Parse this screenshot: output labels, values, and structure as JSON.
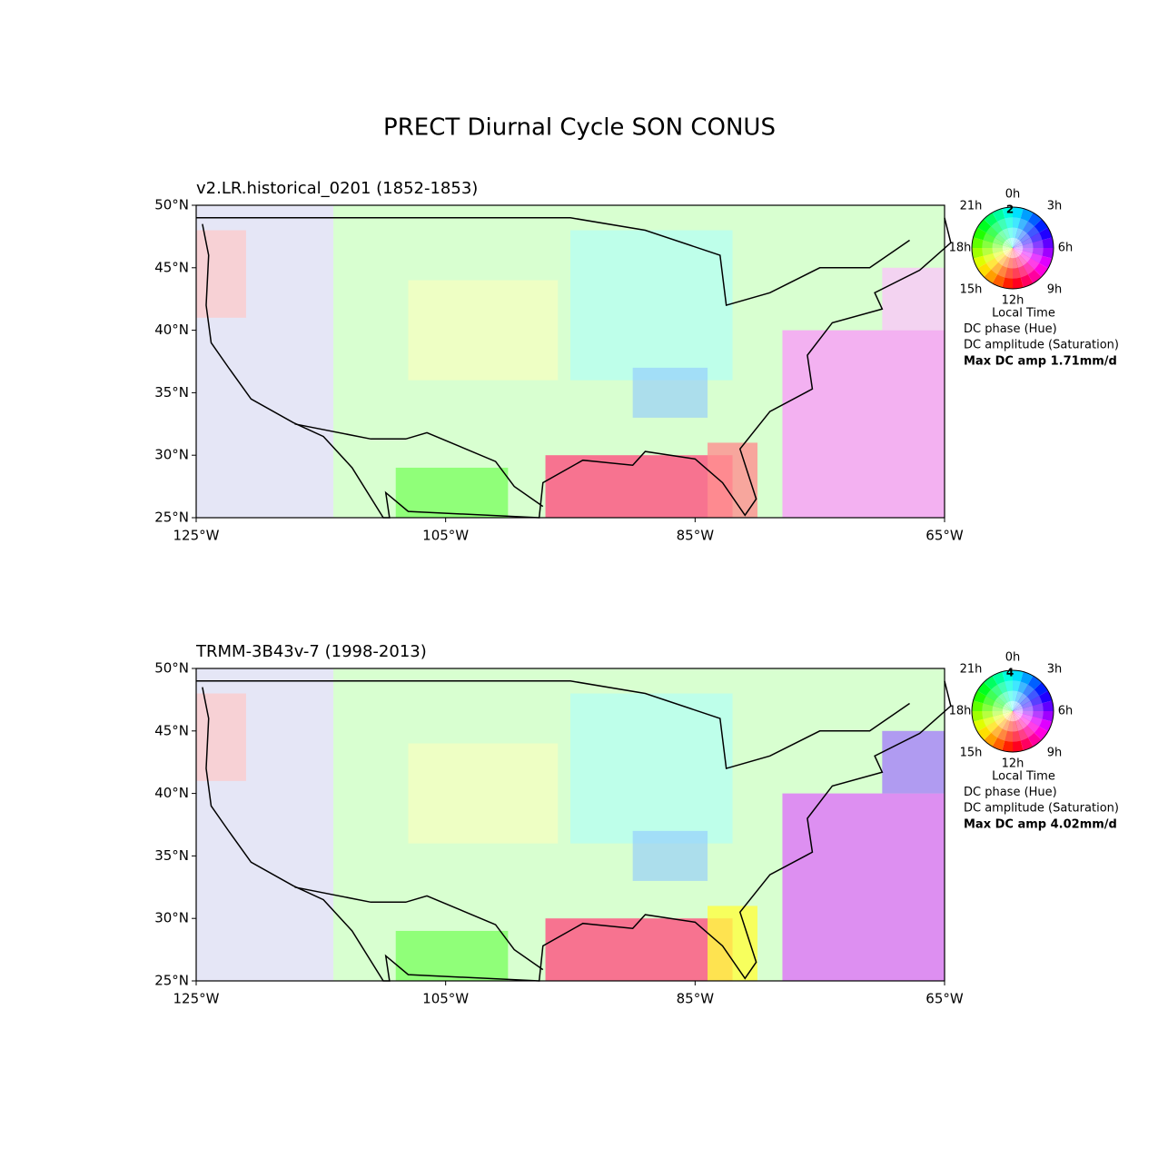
{
  "title": "PRECT Diurnal Cycle  SON CONUS",
  "panels": [
    {
      "subtitle": "v2.LR.historical_0201 (1852-1853)",
      "xlim": [
        -125,
        -65
      ],
      "ylim": [
        25,
        50
      ],
      "xticks": [
        {
          "value": -125,
          "label": "125°W"
        },
        {
          "value": -105,
          "label": "105°W"
        },
        {
          "value": -85,
          "label": "85°W"
        },
        {
          "value": -65,
          "label": "65°W"
        }
      ],
      "yticks": [
        {
          "value": 25,
          "label": "25°N"
        },
        {
          "value": 30,
          "label": "30°N"
        },
        {
          "value": 35,
          "label": "35°N"
        },
        {
          "value": 40,
          "label": "40°N"
        },
        {
          "value": 45,
          "label": "45°N"
        },
        {
          "value": 50,
          "label": "50°N"
        }
      ],
      "legend": {
        "max_label": "2",
        "hours": [
          "0h",
          "3h",
          "6h",
          "9h",
          "12h",
          "15h",
          "18h",
          "21h"
        ],
        "lines": [
          "Local Time",
          "DC phase (Hue)",
          "DC amplitude (Saturation)"
        ],
        "max_amp": "Max DC amp 1.71mm/d"
      }
    },
    {
      "subtitle": "TRMM-3B43v-7 (1998-2013)",
      "xlim": [
        -125,
        -65
      ],
      "ylim": [
        25,
        50
      ],
      "xticks": [
        {
          "value": -125,
          "label": "125°W"
        },
        {
          "value": -105,
          "label": "105°W"
        },
        {
          "value": -85,
          "label": "85°W"
        },
        {
          "value": -65,
          "label": "65°W"
        }
      ],
      "yticks": [
        {
          "value": 25,
          "label": "25°N"
        },
        {
          "value": 30,
          "label": "30°N"
        },
        {
          "value": 35,
          "label": "35°N"
        },
        {
          "value": 40,
          "label": "40°N"
        },
        {
          "value": 45,
          "label": "45°N"
        },
        {
          "value": 50,
          "label": "50°N"
        }
      ],
      "legend": {
        "max_label": "4",
        "hours": [
          "0h",
          "3h",
          "6h",
          "9h",
          "12h",
          "15h",
          "18h",
          "21h"
        ],
        "lines": [
          "Local Time",
          "DC phase (Hue)",
          "DC amplitude (Saturation)"
        ],
        "max_amp": "Max DC amp 4.02mm/d"
      }
    }
  ]
}
